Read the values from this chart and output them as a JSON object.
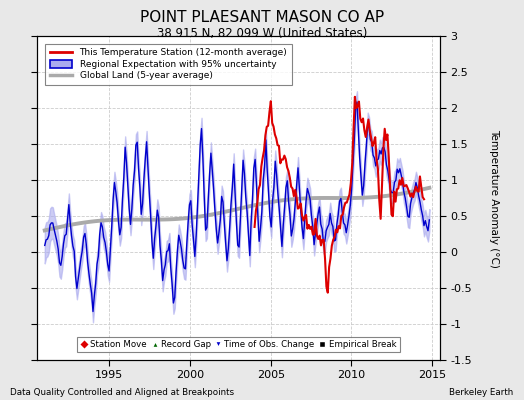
{
  "title": "POINT PLAESANT MASON CO AP",
  "subtitle": "38.915 N, 82.099 W (United States)",
  "footer_left": "Data Quality Controlled and Aligned at Breakpoints",
  "footer_right": "Berkeley Earth",
  "ylabel": "Temperature Anomaly (°C)",
  "ylim": [
    -1.5,
    3.0
  ],
  "xlim": [
    1990.5,
    2015.5
  ],
  "yticks": [
    -1.5,
    -1.0,
    -0.5,
    0.0,
    0.5,
    1.0,
    1.5,
    2.0,
    2.5,
    3.0
  ],
  "xticks": [
    1995,
    2000,
    2005,
    2010,
    2015
  ],
  "background_color": "#e8e8e8",
  "plot_bg_color": "#ffffff",
  "legend_entries": [
    "This Temperature Station (12-month average)",
    "Regional Expectation with 95% uncertainty",
    "Global Land (5-year average)"
  ],
  "station_color": "#dd0000",
  "regional_color": "#0000cc",
  "regional_fill_color": "#aaaaee",
  "global_color": "#aaaaaa",
  "marker_legend": [
    {
      "label": "Station Move",
      "color": "#cc0000",
      "marker": "D"
    },
    {
      "label": "Record Gap",
      "color": "#006600",
      "marker": "^"
    },
    {
      "label": "Time of Obs. Change",
      "color": "#0000cc",
      "marker": "v"
    },
    {
      "label": "Empirical Break",
      "color": "#000000",
      "marker": "s"
    }
  ]
}
